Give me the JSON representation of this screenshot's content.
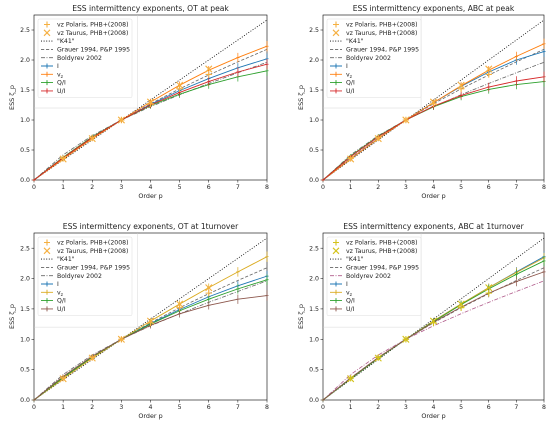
{
  "chart_data": [
    {
      "type": "line",
      "title": "ESS intermittency exponents, OT at peak",
      "xlabel": "Order p",
      "ylabel": "ESS ζ_p",
      "xlim": [
        0,
        8
      ],
      "ylim": [
        0,
        2.75
      ],
      "xticks": [
        "0",
        "1",
        "2",
        "3",
        "4",
        "5",
        "6",
        "7",
        "8"
      ],
      "yticks": [
        "0.0",
        "0.5",
        "1.0",
        "1.5",
        "2.0",
        "2.5"
      ],
      "grid": false,
      "legend_position": "top-left",
      "legend_order": [
        "vz Polaris, PHB+(2008)",
        "vz Taurus, PHB+(2008)",
        "\"K41\"",
        "Grauer 1994, P&P 1995",
        "Boldyrev 2002",
        "I",
        "v_z",
        "Q/I",
        "U/I"
      ],
      "x": [
        0,
        1,
        2,
        3,
        4,
        5,
        6,
        7,
        8
      ],
      "reference": [
        {
          "name": "\"K41\"",
          "style": "dotted",
          "color": "#000000",
          "values": [
            0,
            0.3333,
            0.6667,
            1.0,
            1.3333,
            1.6667,
            2.0,
            2.3333,
            2.6667
          ]
        },
        {
          "name": "Grauer 1994, P&P 1995",
          "style": "dashed",
          "color": "#666666",
          "values": [
            0,
            0.3645,
            0.6989,
            1.0,
            1.271,
            1.5195,
            1.7503,
            1.9686,
            2.178
          ]
        },
        {
          "name": "Boldyrev 2002",
          "style": "dashdot",
          "color": "#666666",
          "values": [
            0,
            0.4189,
            0.7407,
            1.0,
            1.2213,
            1.4211,
            1.6083,
            1.7877,
            1.9625
          ]
        }
      ],
      "series": [
        {
          "name": "I",
          "color": "#1f77b4",
          "values": [
            0,
            0.37,
            0.71,
            1.0,
            1.26,
            1.49,
            1.69,
            1.87,
            2.02
          ]
        },
        {
          "name": "v_z",
          "color": "#ff7f0e",
          "values": [
            0,
            0.35,
            0.69,
            1.0,
            1.3,
            1.58,
            1.83,
            2.04,
            2.23
          ]
        },
        {
          "name": "Q/I",
          "color": "#2ca02c",
          "values": [
            0,
            0.38,
            0.72,
            1.0,
            1.24,
            1.43,
            1.59,
            1.72,
            1.82
          ]
        },
        {
          "name": "U/I",
          "color": "#d62728",
          "values": [
            0,
            0.37,
            0.71,
            1.0,
            1.25,
            1.46,
            1.64,
            1.8,
            1.93
          ]
        }
      ],
      "observations": [
        {
          "name": "vz Polaris, PHB+(2008)",
          "marker": "plus",
          "color": "#f5b041",
          "x": [
            1,
            2,
            3,
            4,
            5,
            6
          ],
          "y": [
            0.36,
            0.7,
            1.0,
            1.27,
            1.52,
            1.76
          ]
        },
        {
          "name": "vz Taurus, PHB+(2008)",
          "marker": "x",
          "color": "#f5b041",
          "x": [
            1,
            2,
            3,
            4,
            5,
            6
          ],
          "y": [
            0.35,
            0.69,
            1.0,
            1.3,
            1.58,
            1.85
          ]
        }
      ]
    },
    {
      "type": "line",
      "title": "ESS intermittency exponents, ABC at peak",
      "xlabel": "Order p",
      "ylabel": "ESS ζ_p",
      "xlim": [
        0,
        8
      ],
      "ylim": [
        0,
        2.75
      ],
      "xticks": [
        "0",
        "1",
        "2",
        "3",
        "4",
        "5",
        "6",
        "7",
        "8"
      ],
      "yticks": [
        "0.0",
        "0.5",
        "1.0",
        "1.5",
        "2.0",
        "2.5"
      ],
      "grid": false,
      "legend_position": "top-left",
      "legend_order": [
        "vz Polaris, PHB+(2008)",
        "vz Taurus, PHB+(2008)",
        "\"K41\"",
        "Grauer 1994, P&P 1995",
        "Boldyrev 2002",
        "I",
        "v_z",
        "Q/I",
        "U/I"
      ],
      "x": [
        0,
        1,
        2,
        3,
        4,
        5,
        6,
        7,
        8
      ],
      "reference": [
        {
          "name": "\"K41\"",
          "style": "dotted",
          "color": "#000000",
          "values": [
            0,
            0.3333,
            0.6667,
            1.0,
            1.3333,
            1.6667,
            2.0,
            2.3333,
            2.6667
          ]
        },
        {
          "name": "Grauer 1994, P&P 1995",
          "style": "dashed",
          "color": "#666666",
          "values": [
            0,
            0.3645,
            0.6989,
            1.0,
            1.271,
            1.5195,
            1.7503,
            1.9686,
            2.178
          ]
        },
        {
          "name": "Boldyrev 2002",
          "style": "dashdot",
          "color": "#666666",
          "values": [
            0,
            0.4189,
            0.7407,
            1.0,
            1.2213,
            1.4211,
            1.6083,
            1.7877,
            1.9625
          ]
        }
      ],
      "series": [
        {
          "name": "I",
          "color": "#1f77b4",
          "values": [
            0,
            0.35,
            0.69,
            1.0,
            1.29,
            1.56,
            1.8,
            2.0,
            2.14
          ]
        },
        {
          "name": "v_z",
          "color": "#ff7f0e",
          "values": [
            0,
            0.35,
            0.69,
            1.0,
            1.29,
            1.57,
            1.83,
            2.06,
            2.27
          ]
        },
        {
          "name": "Q/I",
          "color": "#2ca02c",
          "values": [
            0,
            0.4,
            0.73,
            1.0,
            1.22,
            1.39,
            1.51,
            1.59,
            1.64
          ]
        },
        {
          "name": "U/I",
          "color": "#d62728",
          "values": [
            0,
            0.39,
            0.72,
            1.0,
            1.23,
            1.41,
            1.55,
            1.65,
            1.72
          ]
        }
      ],
      "observations": [
        {
          "name": "vz Polaris, PHB+(2008)",
          "marker": "plus",
          "color": "#f5b041",
          "x": [
            1,
            2,
            3,
            4,
            5,
            6
          ],
          "y": [
            0.36,
            0.7,
            1.0,
            1.27,
            1.52,
            1.76
          ]
        },
        {
          "name": "vz Taurus, PHB+(2008)",
          "marker": "x",
          "color": "#f5b041",
          "x": [
            1,
            2,
            3,
            4,
            5,
            6
          ],
          "y": [
            0.35,
            0.69,
            1.0,
            1.3,
            1.58,
            1.85
          ]
        }
      ]
    },
    {
      "type": "line",
      "title": "ESS intermittency exponents, OT at 1turnover",
      "xlabel": "Order p",
      "ylabel": "ESS ζ_p",
      "xlim": [
        0,
        8
      ],
      "ylim": [
        0,
        2.75
      ],
      "xticks": [
        "0",
        "1",
        "2",
        "3",
        "4",
        "5",
        "6",
        "7",
        "8"
      ],
      "yticks": [
        "0.0",
        "0.5",
        "1.0",
        "1.5",
        "2.0",
        "2.5"
      ],
      "grid": false,
      "legend_position": "top-left",
      "legend_order": [
        "vz Polaris, PHB+(2008)",
        "vz Taurus, PHB+(2008)",
        "\"K41\"",
        "Grauer 1994, P&P 1995",
        "Boldyrev 2002",
        "I",
        "v_z",
        "Q/I",
        "U/I"
      ],
      "x": [
        0,
        1,
        2,
        3,
        4,
        5,
        6,
        7,
        8
      ],
      "reference": [
        {
          "name": "\"K41\"",
          "style": "dotted",
          "color": "#000000",
          "values": [
            0,
            0.3333,
            0.6667,
            1.0,
            1.3333,
            1.6667,
            2.0,
            2.3333,
            2.6667
          ]
        },
        {
          "name": "Grauer 1994, P&P 1995",
          "style": "dashed",
          "color": "#666666",
          "values": [
            0,
            0.3645,
            0.6989,
            1.0,
            1.271,
            1.5195,
            1.7503,
            1.9686,
            2.178
          ]
        },
        {
          "name": "Boldyrev 2002",
          "style": "dashdot",
          "color": "#666666",
          "values": [
            0,
            0.4189,
            0.7407,
            1.0,
            1.2213,
            1.4211,
            1.6083,
            1.7877,
            1.9625
          ]
        }
      ],
      "series": [
        {
          "name": "I",
          "color": "#1f77b4",
          "values": [
            0,
            0.37,
            0.71,
            1.0,
            1.26,
            1.49,
            1.7,
            1.88,
            2.04
          ]
        },
        {
          "name": "v_z",
          "color": "#dbab1f",
          "values": [
            0,
            0.35,
            0.69,
            1.0,
            1.3,
            1.58,
            1.85,
            2.11,
            2.36
          ]
        },
        {
          "name": "Q/I",
          "color": "#2ca02c",
          "values": [
            0,
            0.37,
            0.71,
            1.0,
            1.25,
            1.47,
            1.66,
            1.83,
            1.98
          ]
        },
        {
          "name": "U/I",
          "color": "#8c564b",
          "values": [
            0,
            0.39,
            0.72,
            1.0,
            1.23,
            1.42,
            1.56,
            1.66,
            1.72
          ]
        }
      ],
      "observations": [
        {
          "name": "vz Polaris, PHB+(2008)",
          "marker": "plus",
          "color": "#f5b041",
          "x": [
            1,
            2,
            3,
            4,
            5,
            6
          ],
          "y": [
            0.36,
            0.7,
            1.0,
            1.27,
            1.52,
            1.76
          ]
        },
        {
          "name": "vz Taurus, PHB+(2008)",
          "marker": "x",
          "color": "#f5b041",
          "x": [
            1,
            2,
            3,
            4,
            5,
            6
          ],
          "y": [
            0.35,
            0.69,
            1.0,
            1.3,
            1.58,
            1.85
          ]
        }
      ]
    },
    {
      "type": "line",
      "title": "ESS intermittency exponents, ABC at 1turnover",
      "xlabel": "Order p",
      "ylabel": "ESS ζ_p",
      "xlim": [
        0,
        8
      ],
      "ylim": [
        0,
        2.75
      ],
      "xticks": [
        "0",
        "1",
        "2",
        "3",
        "4",
        "5",
        "6",
        "7",
        "8"
      ],
      "yticks": [
        "0.0",
        "0.5",
        "1.0",
        "1.5",
        "2.0",
        "2.5"
      ],
      "grid": false,
      "legend_position": "top-left",
      "legend_order": [
        "vz Polaris, PHB+(2008)",
        "vz Taurus, PHB+(2008)",
        "\"K41\"",
        "Grauer 1994, P&P 1995",
        "Boldyrev 2002",
        "I",
        "v_z",
        "Q/I",
        "U/I"
      ],
      "x": [
        0,
        1,
        2,
        3,
        4,
        5,
        6,
        7,
        8
      ],
      "reference": [
        {
          "name": "\"K41\"",
          "style": "dotted",
          "color": "#000000",
          "values": [
            0,
            0.3333,
            0.6667,
            1.0,
            1.3333,
            1.6667,
            2.0,
            2.3333,
            2.6667
          ]
        },
        {
          "name": "Grauer 1994, P&P 1995",
          "style": "dashed",
          "color": "#666666",
          "values": [
            0,
            0.3645,
            0.6989,
            1.0,
            1.271,
            1.5195,
            1.7503,
            1.9686,
            2.178
          ]
        },
        {
          "name": "Boldyrev 2002",
          "style": "dashdot",
          "color": "#b05a8a",
          "values": [
            0,
            0.4189,
            0.7407,
            1.0,
            1.2213,
            1.4211,
            1.6083,
            1.7877,
            1.9625
          ]
        }
      ],
      "series": [
        {
          "name": "I",
          "color": "#1f77b4",
          "values": [
            0,
            0.35,
            0.69,
            1.0,
            1.3,
            1.58,
            1.85,
            2.11,
            2.36
          ]
        },
        {
          "name": "v_z",
          "color": "#dbab1f",
          "values": [
            0,
            0.35,
            0.69,
            1.0,
            1.3,
            1.58,
            1.85,
            2.1,
            2.34
          ]
        },
        {
          "name": "Q/I",
          "color": "#2ca02c",
          "values": [
            0,
            0.35,
            0.69,
            1.0,
            1.29,
            1.57,
            1.83,
            2.07,
            2.29
          ]
        },
        {
          "name": "U/I",
          "color": "#8c564b",
          "values": [
            0,
            0.36,
            0.7,
            1.0,
            1.28,
            1.53,
            1.76,
            1.95,
            2.11
          ]
        }
      ],
      "observations": [
        {
          "name": "vz Polaris, PHB+(2008)",
          "marker": "plus",
          "color": "#d4c21a",
          "x": [
            1,
            2,
            3,
            4,
            5,
            6
          ],
          "y": [
            0.36,
            0.7,
            1.0,
            1.27,
            1.52,
            1.76
          ]
        },
        {
          "name": "vz Taurus, PHB+(2008)",
          "marker": "x",
          "color": "#d4c21a",
          "x": [
            1,
            2,
            3,
            4,
            5,
            6
          ],
          "y": [
            0.35,
            0.69,
            1.0,
            1.3,
            1.58,
            1.85
          ]
        }
      ]
    }
  ]
}
